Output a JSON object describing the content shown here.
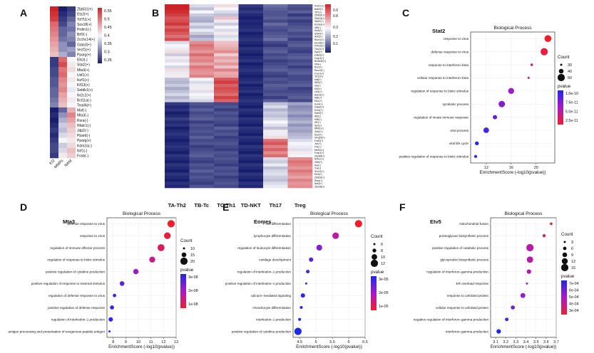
{
  "panels": {
    "A": {
      "letter": "A",
      "columns": [
        "KO",
        "MMPs",
        "NAM"
      ],
      "rows": [
        "Zfp831(+)",
        "Ets2(+)",
        "Tcf7l1(+)",
        "Sox18(+)",
        "Prdm1(-)",
        "Brf2(-)",
        "Zcchc14(+)",
        "Gata3(+)",
        "Vezf1(+)",
        "Pparg(+)",
        "Elk3(-)",
        "Stat2(+)",
        "Mta3(+)",
        "Usf1(+)",
        "Ikzf1(+)",
        "Klf13(+)",
        "Setdb1(+)",
        "Nr2c2(+)",
        "Bcl11a(-)",
        "Tead4(+)",
        "Maf(-)",
        "Mta3(-)",
        "Rxra(-)",
        "Nfatc1(-)",
        "Jdp2(-)",
        "Ppard(-)",
        "Pparg(+)",
        "Kdm2a(-)",
        "Nrf1(-)",
        "Fosb(-)"
      ],
      "legend_ticks": [
        "0.55",
        "0.5",
        "0.45",
        "0.4",
        "0.35",
        "0.3",
        "0.25"
      ]
    },
    "B": {
      "letter": "B",
      "columns": [
        "TA-Th2",
        "TB-Tc",
        "TC-Th1",
        "TD-NKT",
        "Th17",
        "Treg"
      ],
      "row_labels": [
        "Prdm1(+)",
        "Batf3(+)",
        "Tcf7(+)",
        "Zbtb32(+)",
        "Zbtb7a(+)",
        "Zfp57(+)",
        "Eomes(+)",
        "Irf8(+)",
        "Dlx5(+)",
        "Stat4(+)",
        "Ikzf2(+)",
        "Runx1(+)",
        "Hoxb5(+)",
        "Prdm9(+)",
        "Tbx21(+)",
        "Egr2(+)",
        "Gata3(+)",
        "Foxp3(+)",
        "Bhlhe40(+)",
        "Irf4(+)",
        "Rorc(+)",
        "Runx3(+)",
        "Foxo1(+)",
        "Tcf12(+)",
        "Maf(+)",
        "Nfil3(+)",
        "Id2(+)",
        "Klf2(+)",
        "Lef1(+)",
        "Bach2(+)",
        "Myb(+)",
        "Ets1(+)",
        "Sox4(+)",
        "Gata2(+)",
        "Ezh2(+)",
        "Stat3(+)",
        "Atf3(-)",
        "Klf6(+)",
        "Irf1(+)",
        "Sp3(+)",
        "Nfkb1(+)",
        "Zeb1(+)",
        "Ets2(+)",
        "Hmgb3(+)",
        "Fosl2(+)",
        "Jun(+)",
        "Fli1(+)",
        "Mef2c(+)",
        "Foxp1(+)",
        "Zfp384(+)",
        "Nr4a1(+)",
        "Gtf2i(+)",
        "Rel(+)",
        "Tox(+)",
        "Sox13(+)",
        "Etv5(+)",
        "Zbtb16(+)",
        "Rora(+)",
        "Ikzf3(+)",
        "Zfp148(+)"
      ],
      "legend_ticks": [
        "0.9",
        "0.8",
        "0.3",
        "0.2",
        "0.1"
      ]
    },
    "C": {
      "letter": "C",
      "gene": "Stat2",
      "subtitle": "Biological Process",
      "xlabel": "EnrichmentScore (-log10(pvalue))",
      "count_title": "Count",
      "count_ticks": [
        "30",
        "40",
        "50"
      ],
      "pvalue_title": "pvalue",
      "pvalue_ticks": [
        "1.0e-10",
        "7.5e-11",
        "5.0e-11",
        "2.5e-11"
      ]
    },
    "D": {
      "letter": "D",
      "gene": "Mta3",
      "subtitle": "Biological Process",
      "xlabel": "EnrichmentScore (-log10(pvalue))",
      "count_title": "Count",
      "count_ticks": [
        "10",
        "15",
        "20"
      ],
      "pvalue_title": "pvalue",
      "pvalue_ticks": [
        "3e-08",
        "2e-08",
        "1e-08"
      ]
    },
    "E": {
      "letter": "E",
      "gene": "Eomes",
      "subtitle": "Biological Process",
      "xlabel": "EnrichmentScore (-log10(pvalue))",
      "count_title": "Count",
      "count_ticks": [
        "6",
        "8",
        "10",
        "12"
      ],
      "pvalue_title": "pvalue",
      "pvalue_ticks": [
        "3e-05",
        "2e-05",
        "1e-05"
      ]
    },
    "F": {
      "letter": "F",
      "gene": "Etv5",
      "subtitle": "Biological Process",
      "xlabel": "EnrichmentScore (-log10(pvalue))",
      "count_title": "Count",
      "count_ticks": [
        "3",
        "6",
        "9",
        "12",
        "15"
      ],
      "pvalue_title": "pvalue",
      "pvalue_ticks": [
        "7e-04",
        "6e-04",
        "5e-04",
        "4e-04",
        "3e-04"
      ]
    }
  },
  "chart_data": [
    {
      "type": "heatmap",
      "panel": "A",
      "xlabels": [
        "KO",
        "MMPs",
        "NAM"
      ],
      "ylabels": [
        "Zfp831(+)",
        "Ets2(+)",
        "Tcf7l1(+)",
        "Sox18(+)",
        "Prdm1(-)",
        "Brf2(-)",
        "Zcchc14(+)",
        "Gata3(+)",
        "Vezf1(+)",
        "Pparg(+)",
        "Elk3(-)",
        "Stat2(+)",
        "Mta3(+)",
        "Usf1(+)",
        "Ikzf1(+)",
        "Klf13(+)",
        "Setdb1(+)",
        "Nr2c2(+)",
        "Bcl11a(-)",
        "Tead4(+)",
        "Maf(-)",
        "Mta3(-)",
        "Rxra(-)",
        "Nfatc1(-)",
        "Jdp2(-)",
        "Ppard(-)",
        "Pparg(+)",
        "Kdm2a(-)",
        "Nrf1(-)",
        "Fosb(-)"
      ],
      "values": [
        [
          0.55,
          0.25,
          0.27
        ],
        [
          0.54,
          0.26,
          0.28
        ],
        [
          0.53,
          0.27,
          0.3
        ],
        [
          0.5,
          0.28,
          0.32
        ],
        [
          0.49,
          0.3,
          0.31
        ],
        [
          0.48,
          0.3,
          0.33
        ],
        [
          0.47,
          0.31,
          0.32
        ],
        [
          0.46,
          0.33,
          0.3
        ],
        [
          0.45,
          0.33,
          0.34
        ],
        [
          0.44,
          0.35,
          0.32
        ],
        [
          0.27,
          0.5,
          0.4
        ],
        [
          0.27,
          0.52,
          0.41
        ],
        [
          0.28,
          0.49,
          0.42
        ],
        [
          0.28,
          0.5,
          0.4
        ],
        [
          0.29,
          0.48,
          0.41
        ],
        [
          0.29,
          0.47,
          0.4
        ],
        [
          0.3,
          0.48,
          0.39
        ],
        [
          0.3,
          0.46,
          0.4
        ],
        [
          0.31,
          0.45,
          0.41
        ],
        [
          0.32,
          0.44,
          0.4
        ],
        [
          0.25,
          0.3,
          0.45
        ],
        [
          0.26,
          0.33,
          0.48
        ],
        [
          0.25,
          0.35,
          0.46
        ],
        [
          0.26,
          0.37,
          0.44
        ],
        [
          0.27,
          0.36,
          0.43
        ],
        [
          0.26,
          0.38,
          0.42
        ],
        [
          0.27,
          0.4,
          0.41
        ],
        [
          0.28,
          0.37,
          0.42
        ],
        [
          0.28,
          0.38,
          0.44
        ],
        [
          0.27,
          0.41,
          0.43
        ]
      ],
      "colorbar": {
        "min": 0.25,
        "max": 0.55
      }
    },
    {
      "type": "heatmap",
      "panel": "B",
      "xlabels": [
        "TA-Th2",
        "TB-Tc",
        "TC-Th1",
        "TD-NKT",
        "Th17",
        "Treg"
      ],
      "profiles": [
        [
          0.92,
          0.45,
          0.55,
          0.15,
          0.25,
          0.2
        ],
        [
          0.9,
          0.4,
          0.5,
          0.12,
          0.22,
          0.18
        ],
        [
          0.88,
          0.5,
          0.45,
          0.15,
          0.2,
          0.22
        ],
        [
          0.85,
          0.42,
          0.4,
          0.12,
          0.2,
          0.15
        ],
        [
          0.8,
          0.38,
          0.6,
          0.1,
          0.22,
          0.2
        ],
        [
          0.82,
          0.36,
          0.48,
          0.12,
          0.18,
          0.16
        ],
        [
          0.86,
          0.45,
          0.42,
          0.11,
          0.24,
          0.18
        ],
        [
          0.78,
          0.4,
          0.5,
          0.12,
          0.2,
          0.2
        ],
        [
          0.84,
          0.48,
          0.45,
          0.14,
          0.18,
          0.22
        ],
        [
          0.8,
          0.42,
          0.52,
          0.1,
          0.2,
          0.18
        ],
        [
          0.75,
          0.35,
          0.45,
          0.12,
          0.22,
          0.2
        ],
        [
          0.82,
          0.4,
          0.48,
          0.14,
          0.25,
          0.16
        ],
        [
          0.45,
          0.7,
          0.6,
          0.12,
          0.18,
          0.2
        ],
        [
          0.5,
          0.75,
          0.62,
          0.1,
          0.15,
          0.22
        ],
        [
          0.48,
          0.72,
          0.65,
          0.14,
          0.2,
          0.18
        ],
        [
          0.55,
          0.68,
          0.7,
          0.12,
          0.22,
          0.16
        ],
        [
          0.42,
          0.76,
          0.58,
          0.1,
          0.18,
          0.2
        ],
        [
          0.52,
          0.7,
          0.66,
          0.12,
          0.2,
          0.22
        ],
        [
          0.46,
          0.72,
          0.62,
          0.14,
          0.16,
          0.18
        ],
        [
          0.5,
          0.66,
          0.68,
          0.1,
          0.18,
          0.2
        ],
        [
          0.44,
          0.74,
          0.6,
          0.12,
          0.2,
          0.16
        ],
        [
          0.55,
          0.7,
          0.72,
          0.14,
          0.22,
          0.2
        ],
        [
          0.48,
          0.68,
          0.64,
          0.12,
          0.18,
          0.22
        ],
        [
          0.52,
          0.72,
          0.66,
          0.1,
          0.16,
          0.18
        ],
        [
          0.4,
          0.5,
          0.8,
          0.12,
          0.2,
          0.18
        ],
        [
          0.38,
          0.45,
          0.85,
          0.14,
          0.18,
          0.2
        ],
        [
          0.42,
          0.48,
          0.78,
          0.1,
          0.22,
          0.22
        ],
        [
          0.36,
          0.52,
          0.82,
          0.12,
          0.2,
          0.16
        ],
        [
          0.4,
          0.46,
          0.8,
          0.14,
          0.18,
          0.18
        ],
        [
          0.44,
          0.5,
          0.76,
          0.1,
          0.2,
          0.2
        ],
        [
          0.38,
          0.48,
          0.84,
          0.12,
          0.16,
          0.22
        ],
        [
          0.42,
          0.44,
          0.78,
          0.14,
          0.22,
          0.18
        ],
        [
          0.15,
          0.2,
          0.18,
          0.12,
          0.4,
          0.35
        ],
        [
          0.12,
          0.18,
          0.2,
          0.1,
          0.45,
          0.3
        ],
        [
          0.14,
          0.22,
          0.16,
          0.14,
          0.38,
          0.32
        ],
        [
          0.1,
          0.18,
          0.2,
          0.12,
          0.42,
          0.35
        ],
        [
          0.12,
          0.2,
          0.18,
          0.1,
          0.4,
          0.3
        ],
        [
          0.16,
          0.22,
          0.2,
          0.14,
          0.44,
          0.34
        ],
        [
          0.12,
          0.16,
          0.18,
          0.12,
          0.5,
          0.38
        ],
        [
          0.14,
          0.2,
          0.16,
          0.1,
          0.46,
          0.32
        ],
        [
          0.1,
          0.18,
          0.22,
          0.14,
          0.4,
          0.36
        ],
        [
          0.12,
          0.2,
          0.18,
          0.12,
          0.52,
          0.34
        ],
        [
          0.14,
          0.18,
          0.2,
          0.1,
          0.48,
          0.38
        ],
        [
          0.12,
          0.22,
          0.16,
          0.14,
          0.55,
          0.4
        ],
        [
          0.1,
          0.18,
          0.18,
          0.12,
          0.75,
          0.45
        ],
        [
          0.12,
          0.2,
          0.2,
          0.1,
          0.8,
          0.5
        ],
        [
          0.14,
          0.16,
          0.18,
          0.14,
          0.72,
          0.48
        ],
        [
          0.12,
          0.18,
          0.16,
          0.12,
          0.78,
          0.46
        ],
        [
          0.1,
          0.2,
          0.2,
          0.1,
          0.7,
          0.52
        ],
        [
          0.14,
          0.22,
          0.18,
          0.14,
          0.76,
          0.5
        ],
        [
          0.12,
          0.18,
          0.2,
          0.12,
          0.45,
          0.7
        ],
        [
          0.1,
          0.16,
          0.18,
          0.1,
          0.42,
          0.75
        ],
        [
          0.14,
          0.2,
          0.16,
          0.14,
          0.48,
          0.72
        ],
        [
          0.12,
          0.18,
          0.2,
          0.12,
          0.4,
          0.68
        ],
        [
          0.1,
          0.22,
          0.18,
          0.1,
          0.44,
          0.74
        ],
        [
          0.14,
          0.18,
          0.2,
          0.14,
          0.46,
          0.7
        ],
        [
          0.12,
          0.2,
          0.16,
          0.12,
          0.42,
          0.66
        ],
        [
          0.1,
          0.18,
          0.18,
          0.1,
          0.4,
          0.72
        ],
        [
          0.14,
          0.16,
          0.2,
          0.14,
          0.45,
          0.68
        ],
        [
          0.12,
          0.2,
          0.18,
          0.12,
          0.48,
          0.7
        ]
      ],
      "colorbar": {
        "min": 0.1,
        "max": 0.9
      }
    },
    {
      "type": "scatter",
      "panel": "C",
      "title": "Biological Process",
      "xlabel": "EnrichmentScore (-log10(pvalue))",
      "xlim": [
        9.5,
        23
      ],
      "xticks": [
        12,
        16,
        20
      ],
      "terms": [
        "response to virus",
        "defense response to virus",
        "response to interferon–beta",
        "cellular response to interferon–beta",
        "regulation of response to biotic stimulus",
        "symbiotic process",
        "regulation of innate immune response",
        "viral process",
        "viral life cycle",
        "positive regulation of response to biotic stimulus"
      ],
      "x": [
        21.9,
        21.3,
        19.3,
        18.8,
        16.0,
        14.5,
        13.4,
        12.0,
        10.5,
        10.3
      ],
      "count": [
        48,
        50,
        28,
        26,
        44,
        46,
        36,
        42,
        34,
        30
      ],
      "pvalue": [
        1e-22,
        5e-22,
        5e-20,
        1.6e-19,
        1e-16,
        3.2e-15,
        4e-14,
        1e-12,
        3.2e-11,
        5e-11
      ],
      "color_range": [
        1e-10,
        2.5e-11
      ]
    },
    {
      "type": "scatter",
      "panel": "D",
      "title": "Biological Process",
      "xlabel": "EnrichmentScore (-log10(pvalue))",
      "xlim": [
        7.5,
        13
      ],
      "xticks": [
        8,
        9,
        10,
        11,
        12,
        13
      ],
      "terms": [
        "defense response to virus",
        "response to virus",
        "regulation of immune effector process",
        "regulation of response to biotic stimulus",
        "positive regulation of cytokine production",
        "positive regulation of response to external stimulus",
        "regulation of defense response to virus",
        "positive regulation of defense response",
        "regulation of interleukin–1 production",
        "antigen processing and presentation of exogenous peptide antigen"
      ],
      "x": [
        12.6,
        12.3,
        11.8,
        11.1,
        9.8,
        8.7,
        8.1,
        7.9,
        7.8,
        7.7
      ],
      "count": [
        22,
        20,
        21,
        18,
        16,
        14,
        10,
        12,
        13,
        6
      ],
      "pvalue": [
        2.5e-13,
        5e-13,
        1.6e-12,
        8e-12,
        1.6e-10,
        2e-09,
        8e-09,
        1.3e-08,
        1.6e-08,
        3e-08
      ],
      "color_range": [
        3e-08,
        1e-08
      ]
    },
    {
      "type": "scatter",
      "panel": "E",
      "title": "Biological Process",
      "xlabel": "EnrichmentScore (-log10(pvalue))",
      "xlim": [
        4.3,
        6.5
      ],
      "xticks": [
        4.5,
        5.0,
        5.5,
        6.0,
        6.5
      ],
      "terms": [
        "T cell differentiation",
        "lymphocyte differentiation",
        "regulation of leukocyte differentiation",
        "cartilage development",
        "regulation of interleukin–1 production",
        "positive regulation of interleukin–1 production",
        "calcium–mediated signaling",
        "chondrocyte differentiation",
        "interleukin–1 production",
        "positive regulation of cytokine production"
      ],
      "x": [
        6.3,
        5.6,
        5.1,
        4.85,
        4.75,
        4.7,
        4.6,
        4.55,
        4.5,
        4.45
      ],
      "count": [
        12,
        11,
        10,
        8,
        7,
        5,
        8,
        6,
        6,
        12
      ],
      "pvalue": [
        5e-07,
        2.5e-06,
        8e-06,
        1.4e-05,
        1.8e-05,
        2e-05,
        2.5e-05,
        2.8e-05,
        3.2e-05,
        3.5e-05
      ],
      "color_range": [
        3e-05,
        1e-05
      ]
    },
    {
      "type": "scatter",
      "panel": "F",
      "title": "Biological Process",
      "xlabel": "EnrichmentScore (-log10(pvalue))",
      "xlim": [
        3.05,
        3.7
      ],
      "xticks": [
        3.1,
        3.2,
        3.3,
        3.4,
        3.5,
        3.6,
        3.7
      ],
      "terms": [
        "mitochondrial fusion",
        "proteoglycan biosynthetic process",
        "positive regulation of catabolic process",
        "glycoprotein biosynthetic process",
        "regulation of interferon–gamma production",
        "ER overload response",
        "response to unfolded protein",
        "cellular response to unfolded protein",
        "negative regulation of interferon–gamma production",
        "interferon–gamma production"
      ],
      "x": [
        3.65,
        3.58,
        3.44,
        3.44,
        3.43,
        3.41,
        3.37,
        3.27,
        3.21,
        3.13
      ],
      "count": [
        4,
        5,
        14,
        12,
        8,
        3,
        9,
        7,
        6,
        8
      ],
      "pvalue": [
        0.00022,
        0.00026,
        0.00036,
        0.00036,
        0.00037,
        0.00039,
        0.00043,
        0.00054,
        0.00062,
        0.00074
      ],
      "color_range": [
        0.0007,
        0.0003
      ]
    }
  ]
}
